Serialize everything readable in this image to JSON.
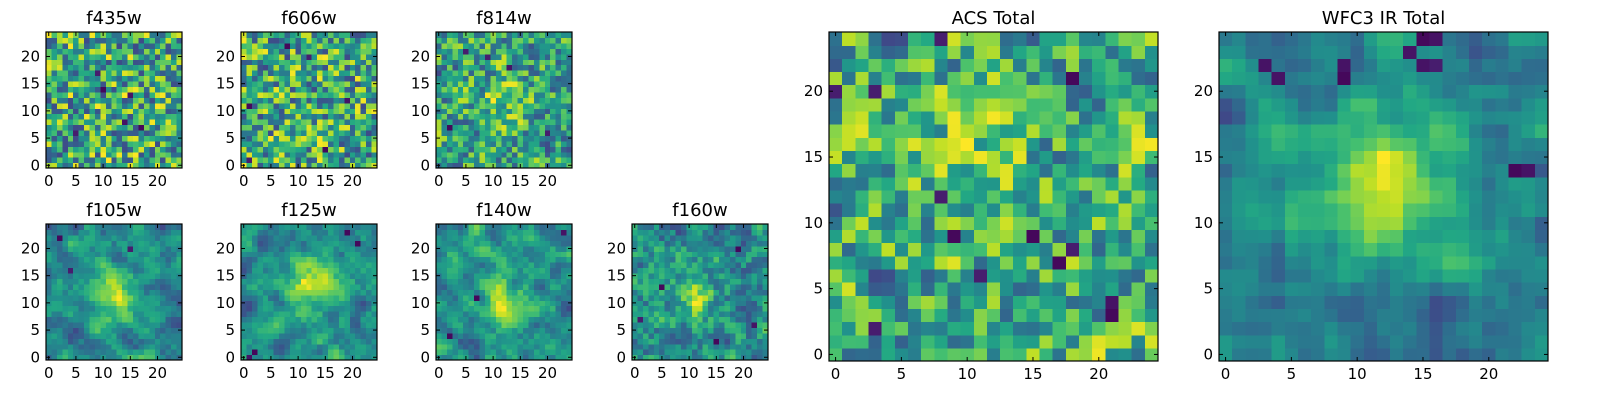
{
  "chart_data": [
    {
      "type": "heatmap",
      "title": "f435w",
      "x_ticks": [
        "0",
        "5",
        "10",
        "15",
        "20"
      ],
      "y_ticks": [
        "0",
        "5",
        "10",
        "15",
        "20"
      ],
      "xlim": [
        -0.5,
        24.5
      ],
      "ylim": [
        -0.5,
        24.5
      ],
      "grid_size": 25,
      "colormap": "viridis",
      "seed": 435,
      "smooth": 0,
      "blob": [
        12,
        12,
        3.0,
        0.0
      ],
      "dark_cells": [
        [
          9,
          17
        ],
        [
          10,
          14
        ],
        [
          14,
          8
        ],
        [
          17,
          7
        ],
        [
          5,
          6
        ],
        [
          15,
          13
        ]
      ],
      "z_range": [
        0,
        1
      ]
    },
    {
      "type": "heatmap",
      "title": "f606w",
      "x_ticks": [
        "0",
        "5",
        "10",
        "15",
        "20"
      ],
      "y_ticks": [
        "0",
        "5",
        "10",
        "15",
        "20"
      ],
      "xlim": [
        -0.5,
        24.5
      ],
      "ylim": [
        -0.5,
        24.5
      ],
      "grid_size": 25,
      "colormap": "viridis",
      "seed": 606,
      "smooth": 0,
      "blob": [
        12,
        12,
        3.0,
        0.0
      ],
      "dark_cells": [
        [
          8,
          22
        ],
        [
          12,
          20
        ],
        [
          1,
          1
        ],
        [
          1,
          11
        ],
        [
          19,
          12
        ],
        [
          15,
          3
        ]
      ],
      "z_range": [
        0,
        1
      ]
    },
    {
      "type": "heatmap",
      "title": "f814w",
      "x_ticks": [
        "0",
        "5",
        "10",
        "15",
        "20"
      ],
      "y_ticks": [
        "0",
        "5",
        "10",
        "15",
        "20"
      ],
      "xlim": [
        -0.5,
        24.5
      ],
      "ylim": [
        -0.5,
        24.5
      ],
      "grid_size": 25,
      "colormap": "viridis",
      "seed": 814,
      "smooth": 0.3,
      "blob": [
        12,
        12,
        3.0,
        0.25
      ],
      "dark_cells": [
        [
          9,
          20
        ],
        [
          13,
          18
        ],
        [
          5,
          21
        ],
        [
          2,
          7
        ],
        [
          20,
          6
        ]
      ],
      "z_range": [
        0,
        1
      ]
    },
    {
      "type": "heatmap",
      "title": "f105w",
      "x_ticks": [
        "0",
        "5",
        "10",
        "15",
        "20"
      ],
      "y_ticks": [
        "0",
        "5",
        "10",
        "15",
        "20"
      ],
      "xlim": [
        -0.5,
        24.5
      ],
      "ylim": [
        -0.5,
        24.5
      ],
      "grid_size": 25,
      "colormap": "viridis",
      "seed": 105,
      "smooth": 0.8,
      "blob": [
        12,
        11,
        3.5,
        0.35
      ],
      "dark_cells": [
        [
          15,
          20
        ],
        [
          4,
          16
        ],
        [
          2,
          22
        ]
      ],
      "z_range": [
        0,
        1
      ]
    },
    {
      "type": "heatmap",
      "title": "f125w",
      "x_ticks": [
        "0",
        "5",
        "10",
        "15",
        "20"
      ],
      "y_ticks": [
        "0",
        "5",
        "10",
        "15",
        "20"
      ],
      "xlim": [
        -0.5,
        24.5
      ],
      "ylim": [
        -0.5,
        24.5
      ],
      "grid_size": 25,
      "colormap": "viridis",
      "seed": 125,
      "smooth": 0.8,
      "blob": [
        12,
        13,
        3.5,
        0.4
      ],
      "dark_cells": [
        [
          1,
          0
        ],
        [
          2,
          1
        ],
        [
          21,
          21
        ],
        [
          19,
          23
        ]
      ],
      "z_range": [
        0,
        1
      ]
    },
    {
      "type": "heatmap",
      "title": "f140w",
      "x_ticks": [
        "0",
        "5",
        "10",
        "15",
        "20"
      ],
      "y_ticks": [
        "0",
        "5",
        "10",
        "15",
        "20"
      ],
      "xlim": [
        -0.5,
        24.5
      ],
      "ylim": [
        -0.5,
        24.5
      ],
      "grid_size": 25,
      "colormap": "viridis",
      "seed": 140,
      "smooth": 0.8,
      "blob": [
        12,
        11,
        3.5,
        0.35
      ],
      "dark_cells": [
        [
          23,
          23
        ],
        [
          7,
          11
        ],
        [
          2,
          4
        ]
      ],
      "z_range": [
        0,
        1
      ]
    },
    {
      "type": "heatmap",
      "title": "f160w",
      "x_ticks": [
        "0",
        "5",
        "10",
        "15",
        "20"
      ],
      "y_ticks": [
        "0",
        "5",
        "10",
        "15",
        "20"
      ],
      "xlim": [
        -0.5,
        24.5
      ],
      "ylim": [
        -0.5,
        24.5
      ],
      "grid_size": 25,
      "colormap": "viridis",
      "seed": 160,
      "smooth": 0.6,
      "blob": [
        11,
        11,
        3.0,
        0.35
      ],
      "dark_cells": [
        [
          19,
          20
        ],
        [
          5,
          13
        ],
        [
          1,
          7
        ],
        [
          15,
          3
        ],
        [
          22,
          6
        ]
      ],
      "z_range": [
        0,
        1
      ]
    },
    {
      "type": "heatmap",
      "title": "ACS Total",
      "x_ticks": [
        "0",
        "5",
        "10",
        "15",
        "20"
      ],
      "y_ticks": [
        "0",
        "5",
        "10",
        "15",
        "20"
      ],
      "xlim": [
        -0.5,
        24.5
      ],
      "ylim": [
        -0.5,
        24.5
      ],
      "grid_size": 25,
      "colormap": "viridis",
      "seed": 777,
      "smooth": 0.4,
      "blob": [
        12,
        12,
        3.0,
        0.15
      ],
      "dark_cells": [
        [
          8,
          24
        ],
        [
          0,
          20
        ],
        [
          3,
          20
        ],
        [
          18,
          21
        ],
        [
          8,
          12
        ],
        [
          15,
          9
        ],
        [
          9,
          9
        ],
        [
          18,
          8
        ],
        [
          17,
          7
        ],
        [
          11,
          6
        ],
        [
          21,
          4
        ],
        [
          21,
          3
        ],
        [
          3,
          2
        ]
      ],
      "z_range": [
        0,
        1
      ]
    },
    {
      "type": "heatmap",
      "title": "WFC3 IR Total",
      "x_ticks": [
        "0",
        "5",
        "10",
        "15",
        "20"
      ],
      "y_ticks": [
        "0",
        "5",
        "10",
        "15",
        "20"
      ],
      "xlim": [
        -0.5,
        24.5
      ],
      "ylim": [
        -0.5,
        24.5
      ],
      "grid_size": 25,
      "colormap": "viridis",
      "seed": 999,
      "smooth": 1.0,
      "blob": [
        12,
        13,
        4.0,
        0.45
      ],
      "dark_cells": [
        [
          15,
          24
        ],
        [
          16,
          24
        ],
        [
          14,
          23
        ],
        [
          3,
          22
        ],
        [
          9,
          22
        ],
        [
          15,
          22
        ],
        [
          16,
          22
        ],
        [
          4,
          21
        ],
        [
          9,
          21
        ],
        [
          22,
          14
        ],
        [
          23,
          14
        ]
      ],
      "z_range": [
        0,
        1
      ]
    }
  ]
}
